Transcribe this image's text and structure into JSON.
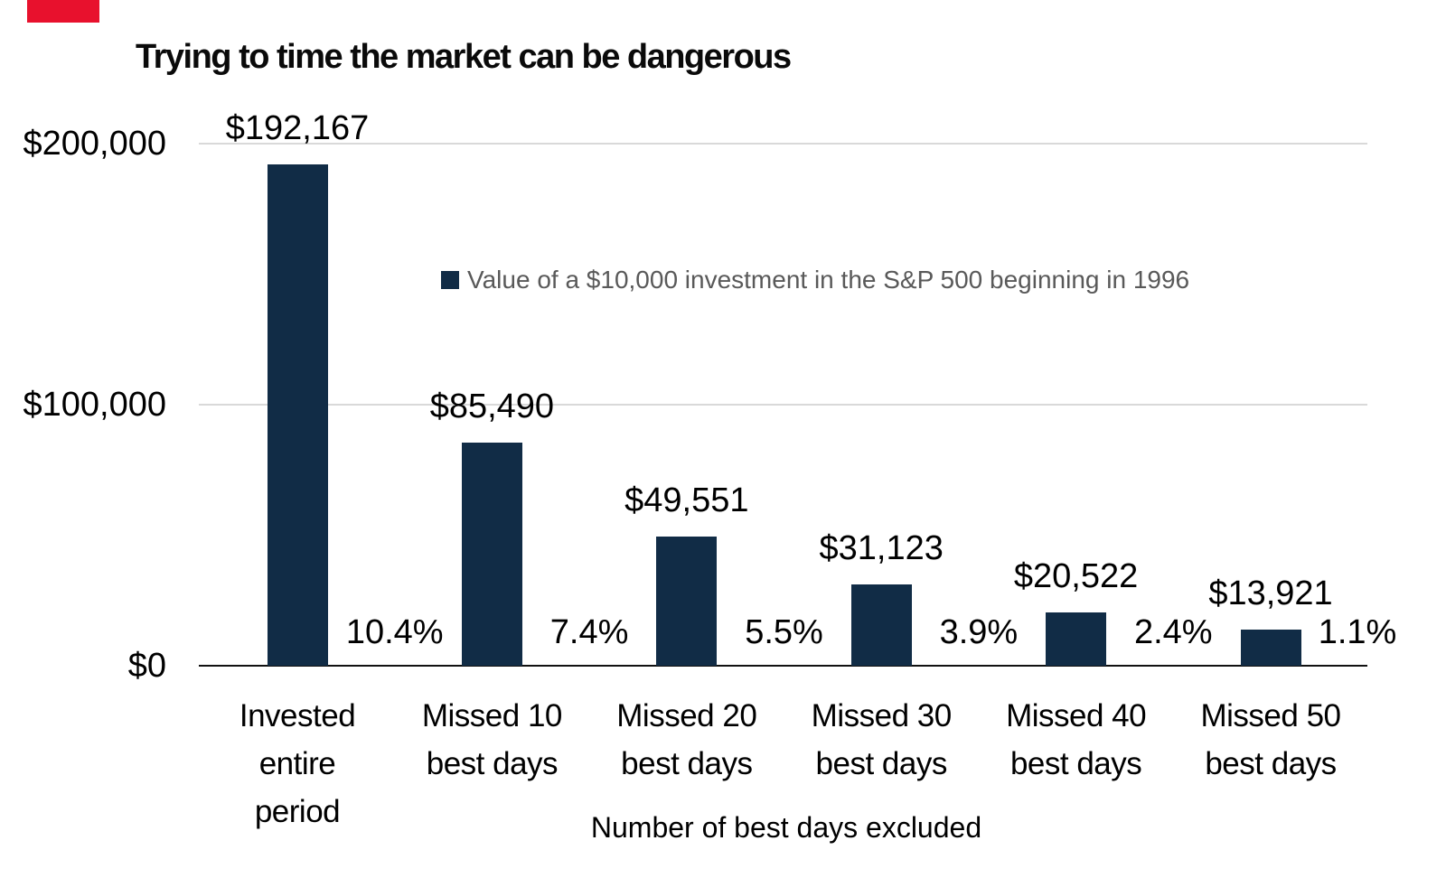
{
  "accent": {
    "brand_mark_color": "#e8112d"
  },
  "chart_data": {
    "type": "bar",
    "title": "Trying to time the market can be dangerous",
    "legend": {
      "label": "Value of a $10,000 investment in the S&P 500 beginning in 1996",
      "position": "inside plot, upper middle"
    },
    "xlabel": "Number of best days excluded",
    "ylabel": "",
    "ylim": [
      0,
      200000
    ],
    "grid": "horizontal gridlines at y ticks",
    "y_ticks": [
      {
        "value": 200000,
        "label": "$200,000"
      },
      {
        "value": 100000,
        "label": "$100,000"
      },
      {
        "value": 0,
        "label": "$0"
      }
    ],
    "categories": [
      "Invested entire period",
      "Missed 10 best days",
      "Missed 20 best days",
      "Missed 30 best days",
      "Missed 40 best days",
      "Missed 50 best days"
    ],
    "category_lines": [
      [
        "Invested",
        "entire",
        "period"
      ],
      [
        "Missed 10",
        "best days"
      ],
      [
        "Missed 20",
        "best days"
      ],
      [
        "Missed 30",
        "best days"
      ],
      [
        "Missed 40",
        "best days"
      ],
      [
        "Missed 50",
        "best days"
      ]
    ],
    "values": [
      192167,
      85490,
      49551,
      31123,
      20522,
      13921
    ],
    "value_labels": [
      "$192,167",
      "$85,490",
      "$49,551",
      "$31,123",
      "$20,522",
      "$13,921"
    ],
    "pct_labels": [
      "10.4%",
      "7.4%",
      "5.5%",
      "3.9%",
      "2.4%",
      "1.1%"
    ],
    "colors": {
      "bar": "#112c46",
      "gridline": "#d9d9d9",
      "axis_line": "#111111",
      "legend_text": "#595959",
      "label_text": "#000000"
    }
  }
}
